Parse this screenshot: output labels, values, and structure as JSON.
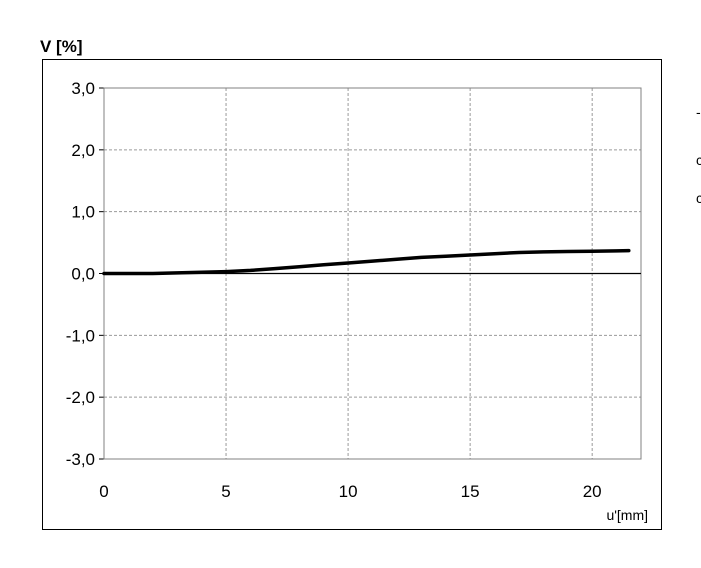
{
  "chart_data": {
    "type": "line",
    "ylabel": "V [%]",
    "xlabel": "u'[mm]",
    "xlim": [
      0,
      22
    ],
    "ylim": [
      -3,
      3
    ],
    "x_ticks": [
      0,
      5,
      10,
      15,
      20
    ],
    "x_tick_labels": [
      "0",
      "5",
      "10",
      "15",
      "20"
    ],
    "y_ticks": [
      3,
      2,
      1,
      0,
      -1,
      -2,
      -3
    ],
    "y_tick_labels": [
      "3,0",
      "2,0",
      "1,0",
      "0,0",
      "-1,0",
      "-2,0",
      "-3,0"
    ],
    "grid": true,
    "series": [
      {
        "color": "#000000",
        "x": [
          0,
          1,
          2,
          3,
          4,
          5,
          6,
          7,
          8,
          9,
          10,
          11,
          12,
          13,
          14,
          15,
          16,
          17,
          18,
          19,
          20,
          21,
          21.5
        ],
        "y": [
          0.0,
          0.0,
          0.0,
          0.01,
          0.02,
          0.03,
          0.05,
          0.08,
          0.11,
          0.14,
          0.17,
          0.2,
          0.23,
          0.26,
          0.28,
          0.3,
          0.32,
          0.34,
          0.35,
          0.355,
          0.36,
          0.365,
          0.37
        ]
      }
    ]
  },
  "edge_glyphs": [
    "-",
    "c",
    "c"
  ]
}
